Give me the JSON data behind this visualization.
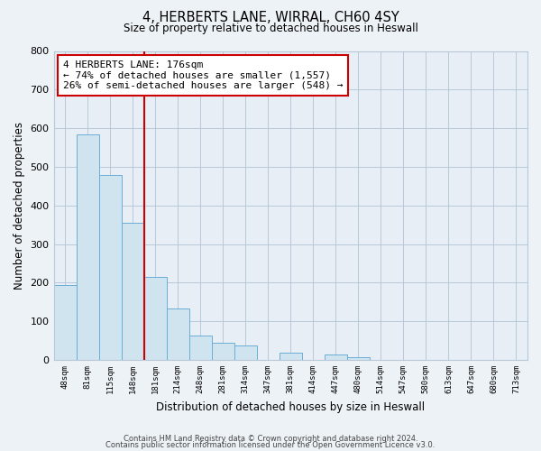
{
  "title_line1": "4, HERBERTS LANE, WIRRAL, CH60 4SY",
  "title_line2": "Size of property relative to detached houses in Heswall",
  "xlabel": "Distribution of detached houses by size in Heswall",
  "ylabel": "Number of detached properties",
  "bin_labels": [
    "48sqm",
    "81sqm",
    "115sqm",
    "148sqm",
    "181sqm",
    "214sqm",
    "248sqm",
    "281sqm",
    "314sqm",
    "347sqm",
    "381sqm",
    "414sqm",
    "447sqm",
    "480sqm",
    "514sqm",
    "547sqm",
    "580sqm",
    "613sqm",
    "647sqm",
    "680sqm",
    "713sqm"
  ],
  "bar_values": [
    193,
    585,
    480,
    355,
    215,
    133,
    63,
    45,
    37,
    0,
    18,
    0,
    13,
    7,
    0,
    0,
    0,
    0,
    0,
    0,
    0
  ],
  "bar_color": "#d0e4f0",
  "bar_edge_color": "#6aaed6",
  "vline_color": "#cc0000",
  "annotation_text": "4 HERBERTS LANE: 176sqm\n← 74% of detached houses are smaller (1,557)\n26% of semi-detached houses are larger (548) →",
  "annotation_box_color": "white",
  "annotation_box_edge_color": "#cc0000",
  "ylim": [
    0,
    800
  ],
  "yticks": [
    0,
    100,
    200,
    300,
    400,
    500,
    600,
    700,
    800
  ],
  "footer_line1": "Contains HM Land Registry data © Crown copyright and database right 2024.",
  "footer_line2": "Contains public sector information licensed under the Open Government Licence v3.0.",
  "bg_color": "#edf2f7",
  "plot_bg_color": "#e8eef5",
  "grid_color": "#b8c8d8"
}
